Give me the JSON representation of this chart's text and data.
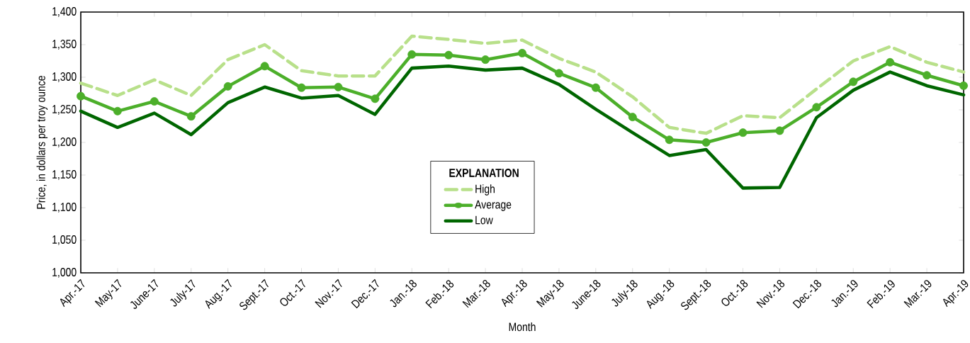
{
  "chart_data": {
    "type": "line",
    "xlabel": "Month",
    "ylabel": "Price, in dollars per troy ounce",
    "legend_title": "EXPLANATION",
    "categories": [
      "Apr.-17",
      "May-17",
      "June-17",
      "July-17",
      "Aug.-17",
      "Sept.-17",
      "Oct.-17",
      "Nov.-17",
      "Dec.-17",
      "Jan.-18",
      "Feb.-18",
      "Mar.-18",
      "Apr.-18",
      "May-18",
      "June-18",
      "July-18",
      "Aug.-18",
      "Sept.-18",
      "Oct.-18",
      "Nov.-18",
      "Dec.-18",
      "Jan.-19",
      "Feb.-19",
      "Mar.-19",
      "Apr.-19"
    ],
    "series": [
      {
        "name": "High",
        "color": "#b8e08a",
        "line_style": "dashed",
        "marker": "none",
        "values": [
          1291,
          1272,
          1296,
          1272,
          1327,
          1350,
          1310,
          1302,
          1302,
          1363,
          1358,
          1352,
          1357,
          1329,
          1308,
          1270,
          1223,
          1214,
          1241,
          1238,
          1282,
          1325,
          1347,
          1323,
          1308
        ]
      },
      {
        "name": "Average",
        "color": "#4caf2a",
        "line_style": "solid",
        "marker": "circle",
        "values": [
          1271,
          1248,
          1263,
          1240,
          1286,
          1317,
          1284,
          1285,
          1267,
          1335,
          1334,
          1327,
          1337,
          1306,
          1284,
          1239,
          1204,
          1200,
          1215,
          1218,
          1254,
          1293,
          1323,
          1303,
          1287
        ]
      },
      {
        "name": "Low",
        "color": "#006600",
        "line_style": "solid",
        "marker": "none",
        "values": [
          1248,
          1223,
          1245,
          1212,
          1261,
          1285,
          1268,
          1272,
          1243,
          1314,
          1317,
          1311,
          1314,
          1289,
          1251,
          1215,
          1180,
          1189,
          1130,
          1131,
          1238,
          1280,
          1308,
          1287,
          1273
        ]
      }
    ],
    "ylim": [
      1000,
      1400
    ],
    "yticks": [
      {
        "value": 1000,
        "label": "1,000"
      },
      {
        "value": 1050,
        "label": "1,050"
      },
      {
        "value": 1100,
        "label": "1,100"
      },
      {
        "value": 1150,
        "label": "1,150"
      },
      {
        "value": 1200,
        "label": "1,200"
      },
      {
        "value": 1250,
        "label": "1,250"
      },
      {
        "value": 1300,
        "label": "1,300"
      },
      {
        "value": 1350,
        "label": "1,350"
      },
      {
        "value": 1400,
        "label": "1,400"
      }
    ],
    "grid": false,
    "legend": "center"
  }
}
